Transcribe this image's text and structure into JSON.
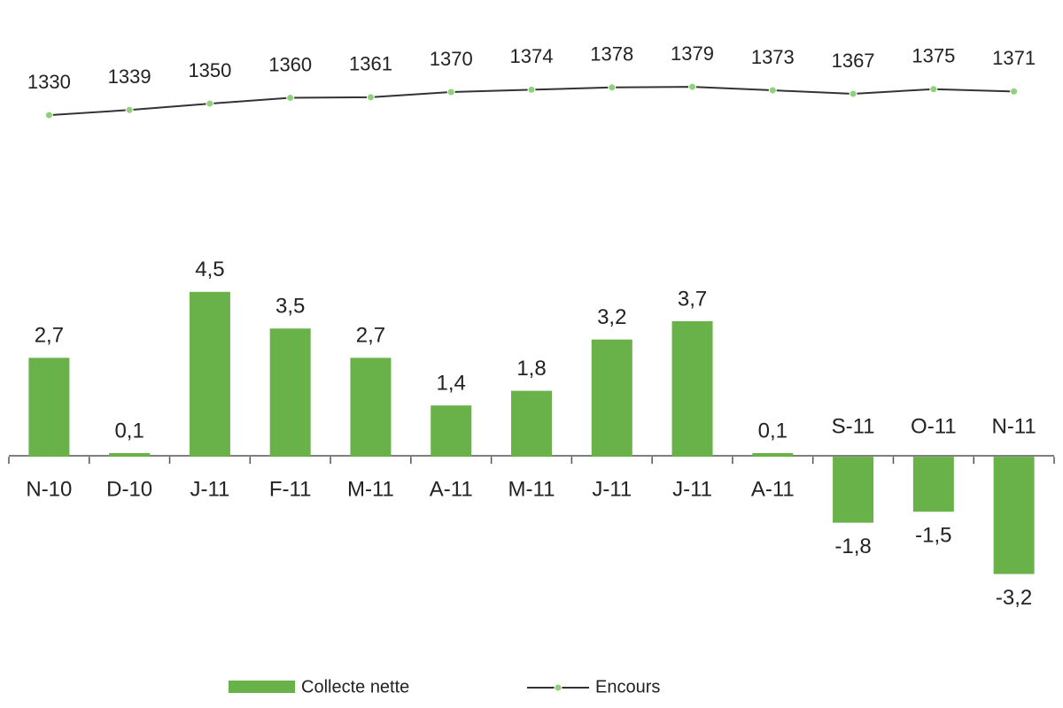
{
  "chart_data": {
    "type": "bar+line",
    "categories": [
      "N-10",
      "D-10",
      "J-11",
      "F-11",
      "M-11",
      "A-11",
      "M-11",
      "J-11",
      "J-11",
      "A-11",
      "S-11",
      "O-11",
      "N-11"
    ],
    "series": [
      {
        "name": "Collecte nette",
        "type": "bar",
        "color": "#69b24a",
        "values": [
          2.7,
          0.1,
          4.5,
          3.5,
          2.7,
          1.4,
          1.8,
          3.2,
          3.7,
          0.1,
          -1.8,
          -1.5,
          -3.2
        ],
        "value_labels": [
          "2,7",
          "0,1",
          "4,5",
          "3,5",
          "2,7",
          "1,4",
          "1,8",
          "3,2",
          "3,7",
          "0,1",
          "-1,8",
          "-1,5",
          "-3,2"
        ]
      },
      {
        "name": "Encours",
        "type": "line",
        "axis": "y2",
        "color": "#333333",
        "marker_color": "#8fd07a",
        "values": [
          1330,
          1339,
          1350,
          1360,
          1361,
          1370,
          1374,
          1378,
          1379,
          1373,
          1367,
          1375,
          1371
        ]
      }
    ],
    "ylim": [
      -4.2,
      11.5
    ],
    "y2lim": [
      473,
      1468
    ],
    "legend": "bottom"
  }
}
